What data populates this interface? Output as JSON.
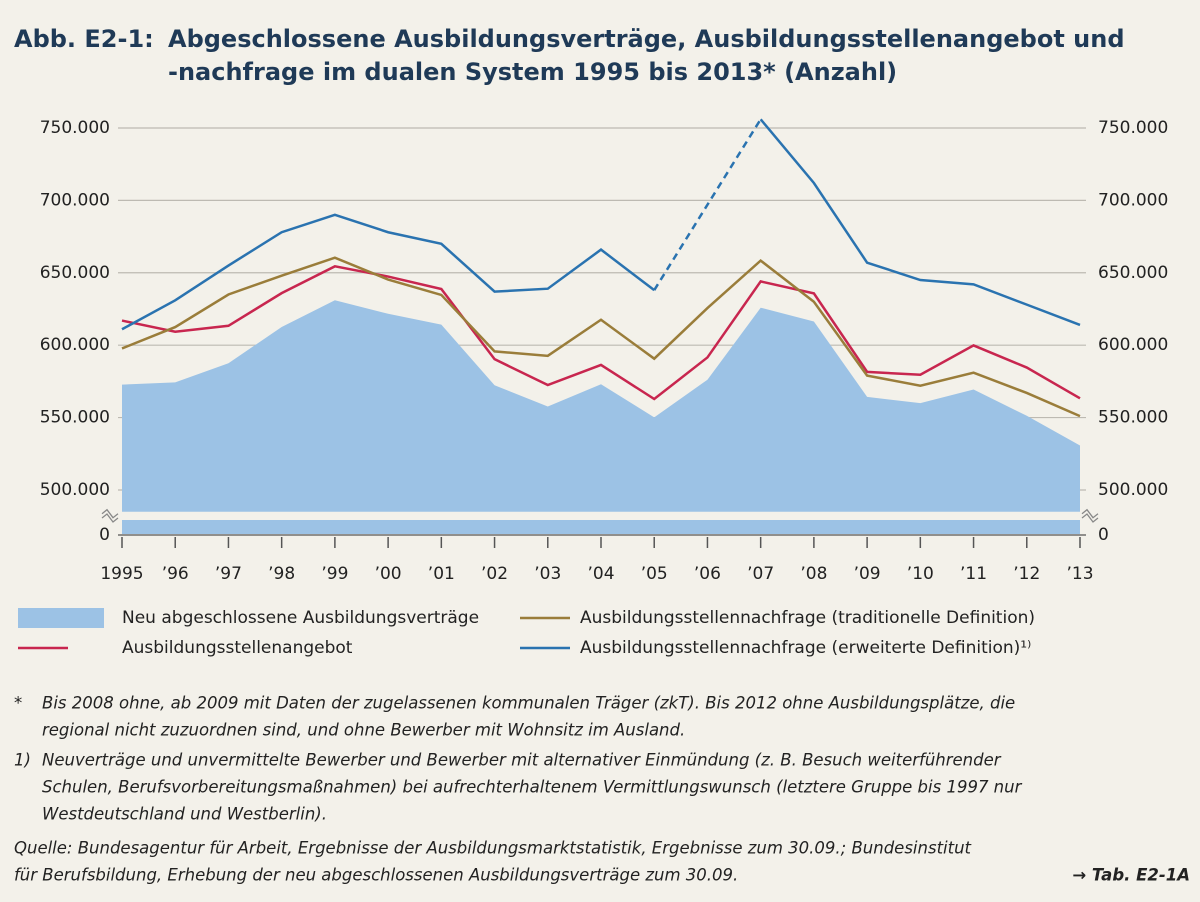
{
  "chart_data": {
    "type": "line",
    "title_label": "Abb. E2-1:",
    "title_lines": [
      "Abgeschlossene Ausbildungsverträge, Ausbildungsstellenangebot und",
      "-nachfrage im dualen System 1995 bis 2013* (Anzahl)"
    ],
    "categories": [
      "1995",
      "’96",
      "’97",
      "’98",
      "’99",
      "’00",
      "’01",
      "’02",
      "’03",
      "’04",
      "’05",
      "’06",
      "’07",
      "’08",
      "’09",
      "’10",
      "’11",
      "’12",
      "’13"
    ],
    "ylim": [
      0,
      760000
    ],
    "ybreak": [
      0,
      485000
    ],
    "yticks": [
      0,
      {
        "value": 500000,
        "label": "500.000"
      },
      {
        "value": 550000,
        "label": "550.000"
      },
      {
        "value": 600000,
        "label": "600.000"
      },
      {
        "value": 650000,
        "label": "650.000"
      },
      {
        "value": 700000,
        "label": "700.000"
      },
      {
        "value": 750000,
        "label": "750.000"
      }
    ],
    "grid": true,
    "series": [
      {
        "name": "Neu abgeschlossene Ausbildungsverträge",
        "type": "area",
        "color": "#9cc2e5",
        "values": [
          572774,
          574327,
          587517,
          612529,
          631015,
          621693,
          614236,
          572323,
          557634,
          572980,
          550180,
          576153,
          625885,
          616342,
          564307,
          559960,
          569380,
          551258,
          530715
        ]
      },
      {
        "name": "Ausbildungsstellenangebot",
        "type": "line",
        "color": "#c8264f",
        "values": [
          616988,
          609274,
          613382,
          635933,
          654454,
          647383,
          638771,
          590328,
          572474,
          586374,
          562816,
          591540,
          644028,
          635758,
          581562,
          579564,
          599829,
          584547,
          563280
        ]
      },
      {
        "name": "Ausbildungsstellennachfrage (traditionelle Definition)",
        "type": "line",
        "color": "#9a7d3a",
        "values": [
          597736,
          612500,
          635000,
          648000,
          660380,
          645335,
          634698,
          595706,
          592649,
          617556,
          590668,
          625606,
          658412,
          630000,
          579000,
          572000,
          581000,
          567000,
          551000
        ]
      },
      {
        "name": "Ausbildungsstellennachfrage (erweiterte Definition)¹⁾",
        "type": "line",
        "color": "#2a73b0",
        "gap_style": "dashed",
        "values": [
          611000,
          631000,
          655000,
          678000,
          690000,
          678000,
          670000,
          637000,
          639000,
          666000,
          638000,
          null,
          756000,
          712000,
          657000,
          645000,
          642000,
          628000,
          614000
        ]
      }
    ],
    "notes": [
      [
        "*",
        "Bis 2008 ohne, ab 2009 mit Daten der zugelassenen kommunalen Träger (zkT). Bis 2012 ohne Ausbildungsplätze, die",
        "regional nicht zuzuordnen sind, und ohne Bewerber mit Wohnsitz im Ausland."
      ],
      [
        "1)",
        "Neuverträge und unvermittelte Bewerber und Bewerber mit alternativer Einmündung (z. B. Besuch weiterführender",
        "Schulen, Berufsvorbereitungsmaßnahmen) bei aufrechterhaltenem Vermittlungswunsch (letztere Gruppe bis 1997 nur",
        "Westdeutschland und Westberlin)."
      ]
    ],
    "source_lines": [
      "Quelle: Bundesagentur für Arbeit, Ergebnisse der Ausbildungsmarktstatistik, Ergebnisse zum 30.09.; Bundesinstitut",
      "für Berufsbildung, Erhebung der neu abgeschlossenen Ausbildungsverträge zum 30.09."
    ],
    "reference": "→ Tab. E2-1A"
  }
}
